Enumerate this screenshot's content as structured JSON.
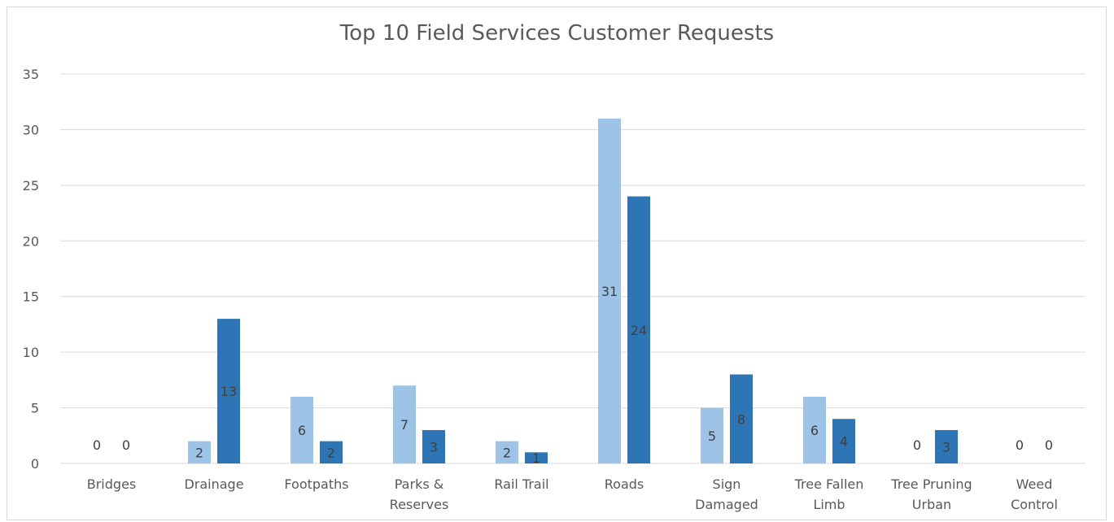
{
  "chart_data": {
    "type": "bar",
    "title": "Top 10 Field Services Customer Requests",
    "xlabel": "",
    "ylabel": "",
    "ylim": [
      0,
      35
    ],
    "yticks": [
      0,
      5,
      10,
      15,
      20,
      25,
      30,
      35
    ],
    "grid": true,
    "legend": "none",
    "categories": [
      [
        "Bridges"
      ],
      [
        "Drainage"
      ],
      [
        "Footpaths"
      ],
      [
        "Parks &",
        "Reserves"
      ],
      [
        "Rail Trail"
      ],
      [
        "Roads"
      ],
      [
        "Sign",
        "Damaged"
      ],
      [
        "Tree Fallen",
        "Limb"
      ],
      [
        "Tree Pruning",
        "Urban"
      ],
      [
        "Weed",
        "Control"
      ]
    ],
    "series": [
      {
        "color": "#9dc3e6",
        "values": [
          0,
          2,
          6,
          7,
          2,
          31,
          5,
          6,
          0,
          0
        ]
      },
      {
        "color": "#2e75b6",
        "values": [
          0,
          13,
          2,
          3,
          1,
          24,
          8,
          4,
          3,
          0
        ]
      }
    ],
    "colors": {
      "grid": "#d9d9d9",
      "text": "#595959",
      "label": "#404040"
    }
  }
}
